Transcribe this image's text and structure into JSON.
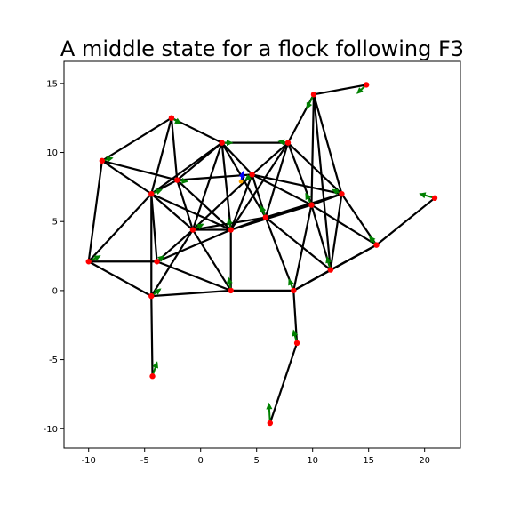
{
  "chart_data": {
    "type": "graph",
    "title": "A middle state for a flock following F3",
    "xlabel": "",
    "ylabel": "",
    "xlim": [
      -12.2,
      23.2
    ],
    "ylim": [
      -11.4,
      16.6
    ],
    "xticks": [
      "-10",
      "-5",
      "0",
      "5",
      "10",
      "15",
      "20"
    ],
    "yticks": [
      "-10",
      "-5",
      "0",
      "5",
      "10",
      "15"
    ],
    "grid": false,
    "colors": {
      "edge": "#000000",
      "node": "#ff0000",
      "velocity": "#008000",
      "leader_arrow": "#0000ff",
      "leader_point": "#ffa500"
    },
    "nodes": [
      {
        "id": 0,
        "x": 10.1,
        "y": 14.2,
        "vx": -0.6,
        "vy": -1.0
      },
      {
        "id": 1,
        "x": 14.8,
        "y": 14.9,
        "vx": -0.8,
        "vy": -0.6
      },
      {
        "id": 2,
        "x": -2.6,
        "y": 12.5,
        "vx": 0.8,
        "vy": -0.4
      },
      {
        "id": 3,
        "x": 1.9,
        "y": 10.7,
        "vx": 0.9,
        "vy": 0.0
      },
      {
        "id": 4,
        "x": 7.8,
        "y": 10.7,
        "vx": -0.8,
        "vy": 0.1
      },
      {
        "id": 5,
        "x": -8.8,
        "y": 9.4,
        "vx": 0.9,
        "vy": 0.2
      },
      {
        "id": 6,
        "x": -2.1,
        "y": 8.0,
        "vx": 0.9,
        "vy": -0.1
      },
      {
        "id": 7,
        "x": 4.6,
        "y": 8.4,
        "vx": -0.6,
        "vy": -0.4
      },
      {
        "id": 8,
        "x": -4.4,
        "y": 7.0,
        "vx": 0.9,
        "vy": 0.3
      },
      {
        "id": 9,
        "x": 12.6,
        "y": 7.0,
        "vx": -0.8,
        "vy": 0.3
      },
      {
        "id": 10,
        "x": 20.9,
        "y": 6.7,
        "vx": -1.3,
        "vy": 0.3
      },
      {
        "id": 11,
        "x": 9.9,
        "y": 6.2,
        "vx": -0.5,
        "vy": 0.8
      },
      {
        "id": 12,
        "x": 5.8,
        "y": 5.3,
        "vx": -0.4,
        "vy": 0.8
      },
      {
        "id": 13,
        "x": -0.7,
        "y": 4.4,
        "vx": 0.9,
        "vy": 0.4
      },
      {
        "id": 14,
        "x": 2.7,
        "y": 4.4,
        "vx": -0.2,
        "vy": 0.8
      },
      {
        "id": 15,
        "x": 15.7,
        "y": 3.3,
        "vx": -0.6,
        "vy": 0.6
      },
      {
        "id": 16,
        "x": -10.0,
        "y": 2.1,
        "vx": 1.0,
        "vy": 0.4
      },
      {
        "id": 17,
        "x": -3.9,
        "y": 2.1,
        "vx": 0.6,
        "vy": 0.4
      },
      {
        "id": 18,
        "x": 11.6,
        "y": 1.5,
        "vx": -0.3,
        "vy": 0.9
      },
      {
        "id": 19,
        "x": 2.7,
        "y": 0.0,
        "vx": -0.2,
        "vy": 0.9
      },
      {
        "id": 20,
        "x": 8.3,
        "y": 0.0,
        "vx": -0.4,
        "vy": 0.8
      },
      {
        "id": 21,
        "x": -4.4,
        "y": -0.4,
        "vx": 0.8,
        "vy": 0.5
      },
      {
        "id": 22,
        "x": 8.6,
        "y": -3.8,
        "vx": -0.3,
        "vy": 0.9
      },
      {
        "id": 23,
        "x": -4.3,
        "y": -6.2,
        "vx": 0.4,
        "vy": 1.0
      },
      {
        "id": 24,
        "x": 6.2,
        "y": -9.6,
        "vx": -0.1,
        "vy": 1.4
      }
    ],
    "edges": [
      [
        0,
        1
      ],
      [
        0,
        4
      ],
      [
        0,
        11
      ],
      [
        0,
        9
      ],
      [
        0,
        18
      ],
      [
        2,
        3
      ],
      [
        2,
        5
      ],
      [
        2,
        8
      ],
      [
        2,
        6
      ],
      [
        3,
        4
      ],
      [
        3,
        6
      ],
      [
        3,
        8
      ],
      [
        3,
        7
      ],
      [
        3,
        12
      ],
      [
        3,
        14
      ],
      [
        3,
        13
      ],
      [
        4,
        7
      ],
      [
        4,
        12
      ],
      [
        4,
        11
      ],
      [
        4,
        9
      ],
      [
        4,
        14
      ],
      [
        5,
        6
      ],
      [
        5,
        8
      ],
      [
        5,
        16
      ],
      [
        6,
        7
      ],
      [
        6,
        8
      ],
      [
        6,
        13
      ],
      [
        6,
        14
      ],
      [
        7,
        12
      ],
      [
        7,
        9
      ],
      [
        7,
        11
      ],
      [
        7,
        14
      ],
      [
        7,
        13
      ],
      [
        8,
        16
      ],
      [
        8,
        13
      ],
      [
        8,
        17
      ],
      [
        8,
        21
      ],
      [
        8,
        14
      ],
      [
        9,
        11
      ],
      [
        9,
        15
      ],
      [
        9,
        18
      ],
      [
        9,
        12
      ],
      [
        10,
        15
      ],
      [
        11,
        12
      ],
      [
        11,
        15
      ],
      [
        11,
        18
      ],
      [
        11,
        20
      ],
      [
        12,
        14
      ],
      [
        12,
        20
      ],
      [
        12,
        18
      ],
      [
        12,
        13
      ],
      [
        13,
        14
      ],
      [
        13,
        17
      ],
      [
        13,
        19
      ],
      [
        13,
        21
      ],
      [
        14,
        19
      ],
      [
        14,
        17
      ],
      [
        14,
        11
      ],
      [
        15,
        20
      ],
      [
        15,
        18
      ],
      [
        16,
        17
      ],
      [
        16,
        21
      ],
      [
        17,
        19
      ],
      [
        18,
        20
      ],
      [
        19,
        20
      ],
      [
        19,
        21
      ],
      [
        20,
        22
      ],
      [
        21,
        23
      ],
      [
        22,
        24
      ]
    ],
    "leader": {
      "x": 3.6,
      "y": 7.9,
      "dx": 0.2,
      "dy": 0.7
    }
  }
}
